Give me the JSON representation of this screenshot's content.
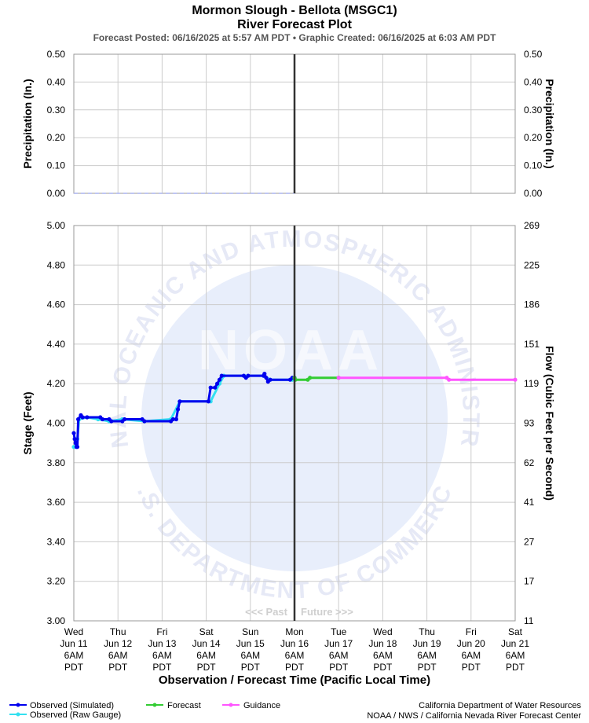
{
  "header": {
    "title_line1": "Mormon Slough - Bellota (MSGC1)",
    "title_line2": "River Forecast Plot",
    "subtitle": "Forecast Posted: 06/16/2025 at 5:57 AM PDT  •  Graphic Created: 06/16/2025 at 6:03 AM PDT"
  },
  "watermark": {
    "logo_text": "NOAA",
    "ring_top": "NATIONAL OCEANIC AND ATMOSPHERIC ADMINISTRATION",
    "ring_bottom": "U.S. DEPARTMENT OF COMMERCE",
    "logo_color": "#e8eefb"
  },
  "past_future": {
    "past": "<<< Past",
    "future": "Future >>>"
  },
  "chart_data": [
    {
      "type": "line",
      "ylabel": "Precipitation (In.)",
      "ylabel_right": "Precipitation (In.)",
      "ylim": [
        0,
        0.5
      ],
      "yticks": [
        "0.50",
        "0.40",
        "0.30",
        "0.20",
        "0.10",
        "0.00"
      ],
      "grid": true,
      "series": [
        {
          "color": "#aab4ee",
          "dashed": true,
          "points": [
            [
              0,
              0
            ],
            [
              5,
              0
            ]
          ]
        }
      ]
    },
    {
      "type": "line",
      "ylabel": "Stage (Feet)",
      "ylabel_right": "Flow (Cubic Feet per Second)",
      "ylim": [
        3.0,
        5.0
      ],
      "yticks": [
        "5.00",
        "4.80",
        "4.60",
        "4.40",
        "4.20",
        "4.00",
        "3.80",
        "3.60",
        "3.40",
        "3.20",
        "3.00"
      ],
      "yticks_right": [
        "269",
        "225",
        "186",
        "151",
        "119",
        "93",
        "62",
        "41",
        "27",
        "17",
        "11"
      ],
      "grid": true,
      "x_categories": [
        [
          "Wed",
          "Jun 11",
          "6AM",
          "PDT"
        ],
        [
          "Thu",
          "Jun 12",
          "6AM",
          "PDT"
        ],
        [
          "Fri",
          "Jun 13",
          "6AM",
          "PDT"
        ],
        [
          "Sat",
          "Jun 14",
          "6AM",
          "PDT"
        ],
        [
          "Sun",
          "Jun 15",
          "6AM",
          "PDT"
        ],
        [
          "Mon",
          "Jun 16",
          "6AM",
          "PDT"
        ],
        [
          "Tue",
          "Jun 17",
          "6AM",
          "PDT"
        ],
        [
          "Wed",
          "Jun 18",
          "6AM",
          "PDT"
        ],
        [
          "Thu",
          "Jun 19",
          "6AM",
          "PDT"
        ],
        [
          "Fri",
          "Jun 20",
          "6AM",
          "PDT"
        ],
        [
          "Sat",
          "Jun 21",
          "6AM",
          "PDT"
        ]
      ],
      "xlabel": "Observation / Forecast Time (Pacific Local Time)",
      "now_index": 5,
      "series": [
        {
          "name": "Observed (Raw Gauge)",
          "color": "#33e0f0",
          "points": [
            [
              0,
              3.88
            ],
            [
              0.05,
              3.88
            ],
            [
              0.08,
              3.92
            ],
            [
              0.12,
              4.02
            ],
            [
              0.3,
              4.03
            ],
            [
              0.55,
              4.02
            ],
            [
              0.8,
              4.01
            ],
            [
              1.1,
              4.02
            ],
            [
              1.6,
              4.01
            ],
            [
              2.2,
              4.02
            ],
            [
              2.4,
              4.11
            ],
            [
              3.1,
              4.11
            ],
            [
              3.3,
              4.2
            ],
            [
              3.4,
              4.24
            ],
            [
              4.3,
              4.24
            ],
            [
              4.45,
              4.22
            ],
            [
              4.95,
              4.22
            ],
            [
              5.0,
              4.23
            ]
          ]
        },
        {
          "name": "Observed (Simulated)",
          "color": "#0000ee",
          "points": [
            [
              0,
              3.95
            ],
            [
              0.02,
              3.92
            ],
            [
              0.04,
              3.9
            ],
            [
              0.06,
              3.88
            ],
            [
              0.08,
              3.88
            ],
            [
              0.1,
              4.02
            ],
            [
              0.16,
              4.04
            ],
            [
              0.2,
              4.03
            ],
            [
              0.3,
              4.03
            ],
            [
              0.6,
              4.03
            ],
            [
              0.65,
              4.02
            ],
            [
              0.8,
              4.02
            ],
            [
              0.85,
              4.01
            ],
            [
              1.1,
              4.01
            ],
            [
              1.15,
              4.02
            ],
            [
              1.55,
              4.02
            ],
            [
              1.6,
              4.01
            ],
            [
              2.2,
              4.01
            ],
            [
              2.25,
              4.02
            ],
            [
              2.32,
              4.02
            ],
            [
              2.36,
              4.07
            ],
            [
              2.4,
              4.11
            ],
            [
              3.05,
              4.11
            ],
            [
              3.1,
              4.18
            ],
            [
              3.2,
              4.18
            ],
            [
              3.25,
              4.2
            ],
            [
              3.3,
              4.22
            ],
            [
              3.35,
              4.24
            ],
            [
              3.85,
              4.24
            ],
            [
              3.9,
              4.23
            ],
            [
              3.95,
              4.24
            ],
            [
              4.3,
              4.24
            ],
            [
              4.32,
              4.25
            ],
            [
              4.36,
              4.23
            ],
            [
              4.4,
              4.21
            ],
            [
              4.45,
              4.22
            ],
            [
              4.9,
              4.22
            ],
            [
              4.95,
              4.23
            ],
            [
              5.0,
              4.23
            ]
          ]
        },
        {
          "name": "Forecast",
          "color": "#33cc33",
          "points": [
            [
              5.0,
              4.23
            ],
            [
              5.02,
              4.22
            ],
            [
              5.3,
              4.22
            ],
            [
              5.35,
              4.23
            ],
            [
              6.0,
              4.23
            ]
          ]
        },
        {
          "name": "Guidance",
          "color": "#ff55ff",
          "points": [
            [
              6.0,
              4.23
            ],
            [
              8.45,
              4.23
            ],
            [
              8.5,
              4.22
            ],
            [
              10.0,
              4.22
            ]
          ]
        }
      ]
    }
  ],
  "legend": {
    "observed_sim": "Observed (Simulated)",
    "observed_raw": "Observed (Raw Gauge)",
    "forecast": "Forecast",
    "guidance": "Guidance"
  },
  "credits": {
    "line1": "California Department of Water Resources",
    "line2": "NOAA / NWS / California Nevada River Forecast Center"
  },
  "colors": {
    "grid": "#cccccc",
    "frame": "#999999",
    "now_line": "#333333",
    "sim": "#0000ee",
    "raw": "#33e0f0",
    "forecast": "#33cc33",
    "guidance": "#ff55ff"
  }
}
